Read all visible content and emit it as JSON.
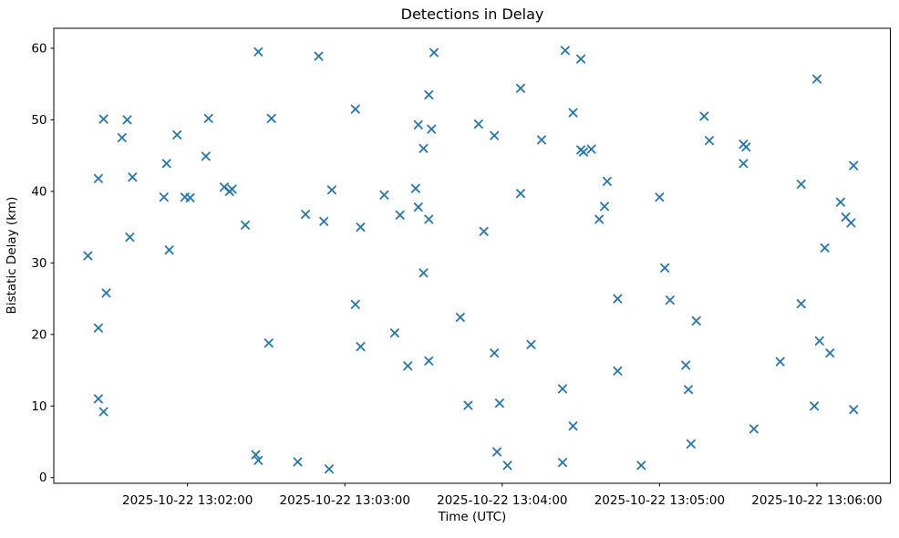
{
  "figure": {
    "background": "#ffffff",
    "spine_color": "#000000",
    "text_color": "#000000"
  },
  "chart_data": {
    "type": "scatter",
    "title": "Detections in Delay",
    "xlabel": "Time (UTC)",
    "ylabel": "Bistatic Delay (km)",
    "date": "2025-10-22",
    "grid": false,
    "legend": false,
    "marker": "x",
    "marker_color": "#1f77b4",
    "x_ticks": [
      "2025-10-22 13:02:00",
      "2025-10-22 13:03:00",
      "2025-10-22 13:04:00",
      "2025-10-22 13:05:00",
      "2025-10-22 13:06:00"
    ],
    "y_ticks": [
      0,
      10,
      20,
      30,
      40,
      50,
      60
    ],
    "xlim": [
      "13:01:09",
      "13:06:28"
    ],
    "ylim": [
      -0.8,
      62.8
    ],
    "series": [
      {
        "name": "detections",
        "points": [
          [
            "13:01:22",
            31.0
          ],
          [
            "13:01:26",
            41.8
          ],
          [
            "13:01:26",
            20.9
          ],
          [
            "13:01:26",
            11.0
          ],
          [
            "13:01:28",
            50.1
          ],
          [
            "13:01:28",
            9.2
          ],
          [
            "13:01:29",
            25.8
          ],
          [
            "13:01:35",
            47.5
          ],
          [
            "13:01:37",
            50.0
          ],
          [
            "13:01:38",
            33.6
          ],
          [
            "13:01:39",
            42.0
          ],
          [
            "13:01:51",
            39.2
          ],
          [
            "13:01:52",
            43.9
          ],
          [
            "13:01:53",
            31.8
          ],
          [
            "13:01:56",
            47.9
          ],
          [
            "13:01:59",
            39.2
          ],
          [
            "13:02:01",
            39.1
          ],
          [
            "13:02:07",
            44.9
          ],
          [
            "13:02:08",
            50.2
          ],
          [
            "13:02:14",
            40.6
          ],
          [
            "13:02:16",
            40.0
          ],
          [
            "13:02:17",
            40.3
          ],
          [
            "13:02:22",
            35.3
          ],
          [
            "13:02:26",
            3.2
          ],
          [
            "13:02:27",
            2.4
          ],
          [
            "13:02:27",
            59.5
          ],
          [
            "13:02:31",
            18.8
          ],
          [
            "13:02:32",
            50.2
          ],
          [
            "13:02:42",
            2.2
          ],
          [
            "13:02:45",
            36.8
          ],
          [
            "13:02:50",
            58.9
          ],
          [
            "13:02:52",
            35.8
          ],
          [
            "13:02:54",
            1.2
          ],
          [
            "13:02:55",
            40.2
          ],
          [
            "13:03:04",
            51.5
          ],
          [
            "13:03:04",
            24.2
          ],
          [
            "13:03:06",
            35.0
          ],
          [
            "13:03:06",
            18.3
          ],
          [
            "13:03:15",
            39.5
          ],
          [
            "13:03:19",
            20.2
          ],
          [
            "13:03:21",
            36.7
          ],
          [
            "13:03:24",
            15.6
          ],
          [
            "13:03:27",
            40.4
          ],
          [
            "13:03:28",
            49.3
          ],
          [
            "13:03:28",
            37.8
          ],
          [
            "13:03:30",
            46.0
          ],
          [
            "13:03:30",
            28.6
          ],
          [
            "13:03:32",
            53.5
          ],
          [
            "13:03:32",
            36.1
          ],
          [
            "13:03:32",
            16.3
          ],
          [
            "13:03:33",
            48.7
          ],
          [
            "13:03:34",
            59.4
          ],
          [
            "13:03:44",
            22.4
          ],
          [
            "13:03:47",
            10.1
          ],
          [
            "13:03:51",
            49.4
          ],
          [
            "13:03:53",
            34.4
          ],
          [
            "13:03:57",
            47.8
          ],
          [
            "13:03:57",
            17.4
          ],
          [
            "13:03:58",
            3.6
          ],
          [
            "13:03:59",
            10.4
          ],
          [
            "13:04:02",
            1.7
          ],
          [
            "13:04:07",
            54.4
          ],
          [
            "13:04:07",
            39.7
          ],
          [
            "13:04:11",
            18.6
          ],
          [
            "13:04:15",
            47.2
          ],
          [
            "13:04:23",
            12.4
          ],
          [
            "13:04:23",
            2.1
          ],
          [
            "13:04:24",
            59.7
          ],
          [
            "13:04:27",
            51.0
          ],
          [
            "13:04:27",
            7.2
          ],
          [
            "13:04:30",
            58.5
          ],
          [
            "13:04:30",
            45.8
          ],
          [
            "13:04:31",
            45.5
          ],
          [
            "13:04:34",
            45.9
          ],
          [
            "13:04:37",
            36.1
          ],
          [
            "13:04:39",
            37.9
          ],
          [
            "13:04:40",
            41.4
          ],
          [
            "13:04:44",
            25.0
          ],
          [
            "13:04:44",
            14.9
          ],
          [
            "13:04:53",
            1.7
          ],
          [
            "13:05:00",
            39.2
          ],
          [
            "13:05:02",
            29.3
          ],
          [
            "13:05:04",
            24.8
          ],
          [
            "13:05:10",
            15.7
          ],
          [
            "13:05:11",
            12.3
          ],
          [
            "13:05:12",
            4.7
          ],
          [
            "13:05:14",
            21.9
          ],
          [
            "13:05:17",
            50.5
          ],
          [
            "13:05:19",
            47.1
          ],
          [
            "13:05:32",
            46.6
          ],
          [
            "13:05:33",
            46.2
          ],
          [
            "13:05:32",
            43.9
          ],
          [
            "13:05:36",
            6.8
          ],
          [
            "13:05:46",
            16.2
          ],
          [
            "13:05:54",
            41.0
          ],
          [
            "13:05:54",
            24.3
          ],
          [
            "13:05:59",
            10.0
          ],
          [
            "13:06:00",
            55.7
          ],
          [
            "13:06:01",
            19.1
          ],
          [
            "13:06:03",
            32.1
          ],
          [
            "13:06:05",
            17.4
          ],
          [
            "13:06:09",
            38.5
          ],
          [
            "13:06:11",
            36.4
          ],
          [
            "13:06:13",
            35.6
          ],
          [
            "13:06:14",
            43.6
          ],
          [
            "13:06:14",
            9.5
          ]
        ]
      }
    ]
  }
}
